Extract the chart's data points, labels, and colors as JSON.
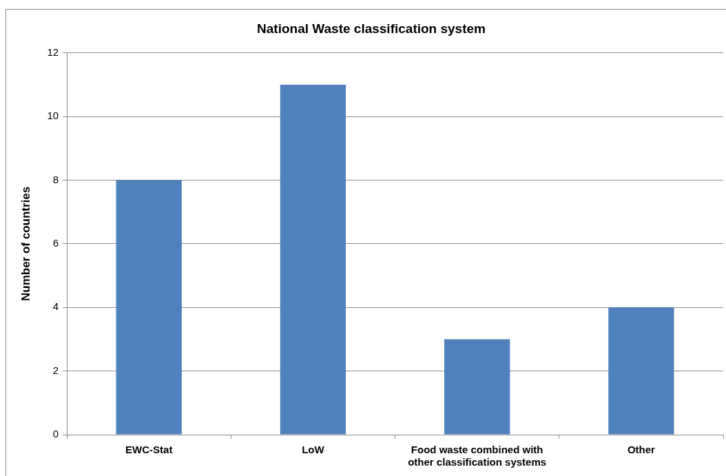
{
  "chart_data": {
    "type": "bar",
    "title": "National Waste classification system",
    "ylabel": "Number of countries",
    "categories": [
      "EWC-Stat",
      "LoW",
      "Food waste combined with other classification systems",
      "Other"
    ],
    "values": [
      8,
      11,
      3,
      4
    ],
    "color": "#4f81bd",
    "ylim": [
      0,
      12
    ],
    "yticks": [
      0,
      2,
      4,
      6,
      8,
      10,
      12
    ],
    "grid": "y"
  }
}
